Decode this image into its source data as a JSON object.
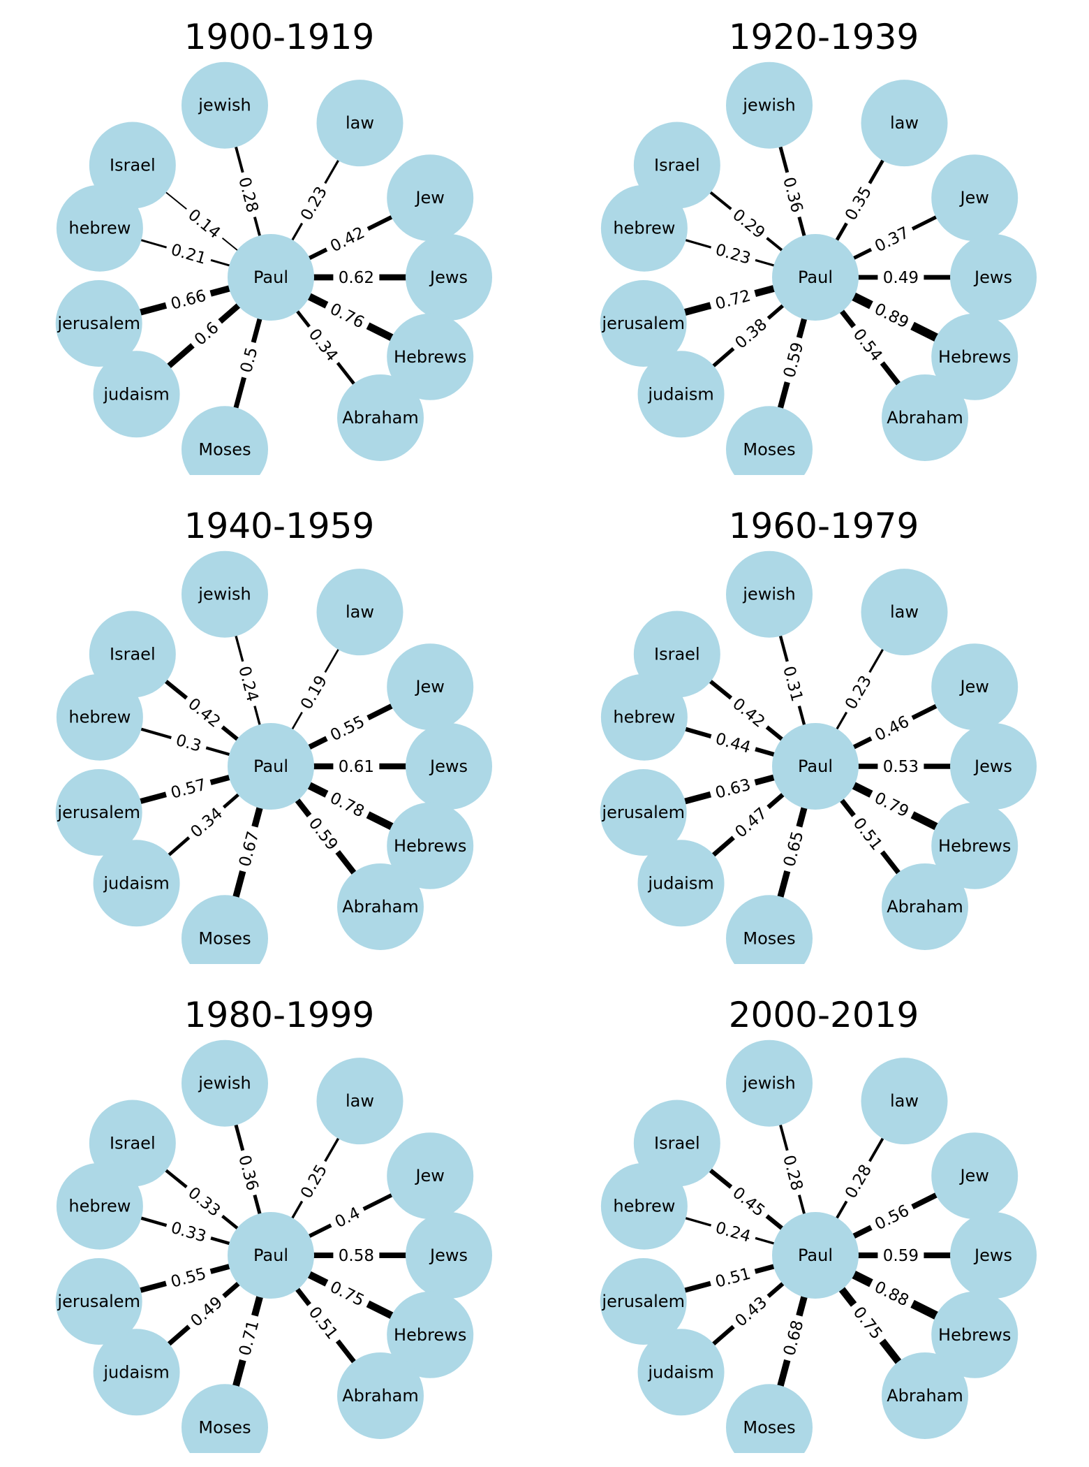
{
  "figure": {
    "center": "Paul",
    "nodes": [
      "jewish",
      "law",
      "Jew",
      "Jews",
      "Hebrews",
      "Abraham",
      "Moses",
      "judaism",
      "jerusalem",
      "hebrew",
      "Israel"
    ],
    "node_color": "#add8e6",
    "edge_color": "#000000",
    "panels": [
      {
        "title": "1900-1919",
        "weights": {
          "jewish": 0.28,
          "law": 0.23,
          "Jew": 0.42,
          "Jews": 0.62,
          "Hebrews": 0.76,
          "Abraham": 0.34,
          "Moses": 0.5,
          "judaism": 0.6,
          "jerusalem": 0.66,
          "hebrew": 0.21,
          "Israel": 0.14
        }
      },
      {
        "title": "1920-1939",
        "weights": {
          "jewish": 0.36,
          "law": 0.35,
          "Jew": 0.37,
          "Jews": 0.49,
          "Hebrews": 0.89,
          "Abraham": 0.54,
          "Moses": 0.59,
          "judaism": 0.38,
          "jerusalem": 0.72,
          "hebrew": 0.23,
          "Israel": 0.29
        }
      },
      {
        "title": "1940-1959",
        "weights": {
          "jewish": 0.24,
          "law": 0.19,
          "Jew": 0.55,
          "Jews": 0.61,
          "Hebrews": 0.78,
          "Abraham": 0.59,
          "Moses": 0.67,
          "judaism": 0.34,
          "jerusalem": 0.57,
          "hebrew": 0.3,
          "Israel": 0.42
        }
      },
      {
        "title": "1960-1979",
        "weights": {
          "jewish": 0.31,
          "law": 0.23,
          "Jew": 0.46,
          "Jews": 0.53,
          "Hebrews": 0.79,
          "Abraham": 0.51,
          "Moses": 0.65,
          "judaism": 0.47,
          "jerusalem": 0.63,
          "hebrew": 0.44,
          "Israel": 0.42
        }
      },
      {
        "title": "1980-1999",
        "weights": {
          "jewish": 0.36,
          "law": 0.25,
          "Jew": 0.4,
          "Jews": 0.58,
          "Hebrews": 0.75,
          "Abraham": 0.51,
          "Moses": 0.71,
          "judaism": 0.49,
          "jerusalem": 0.55,
          "hebrew": 0.33,
          "Israel": 0.33
        }
      },
      {
        "title": "2000-2019",
        "weights": {
          "jewish": 0.28,
          "law": 0.28,
          "Jew": 0.56,
          "Jews": 0.59,
          "Hebrews": 0.88,
          "Abraham": 0.75,
          "Moses": 0.68,
          "judaism": 0.43,
          "jerusalem": 0.51,
          "hebrew": 0.24,
          "Israel": 0.45
        }
      }
    ]
  }
}
